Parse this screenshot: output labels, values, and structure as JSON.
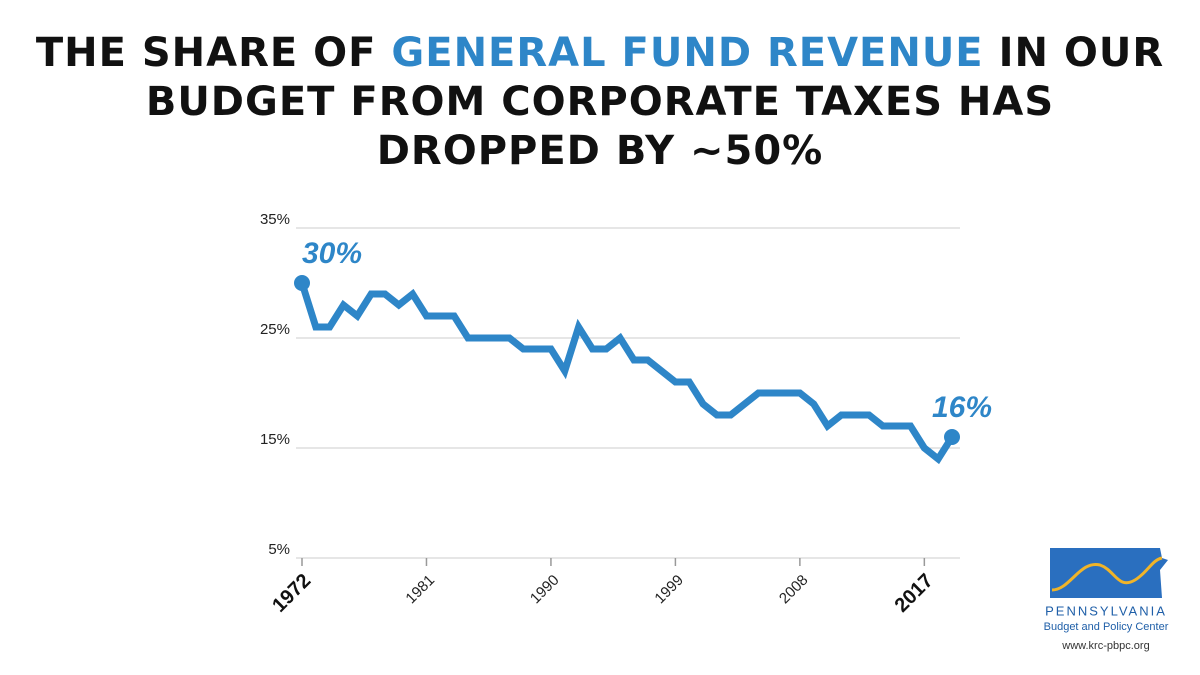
{
  "chart_data": {
    "type": "line",
    "title_segments": [
      "THE SHARE OF ",
      "GENERAL FUND REVENUE",
      " IN OUR",
      "BUDGET FROM CORPORATE TAXES HAS",
      "DROPPED BY ~50%"
    ],
    "x": [
      1972,
      1973,
      1974,
      1975,
      1976,
      1977,
      1978,
      1979,
      1980,
      1981,
      1982,
      1983,
      1984,
      1985,
      1986,
      1987,
      1988,
      1989,
      1990,
      1991,
      1992,
      1993,
      1994,
      1995,
      1996,
      1997,
      1998,
      1999,
      2000,
      2001,
      2002,
      2003,
      2004,
      2005,
      2006,
      2007,
      2008,
      2009,
      2010,
      2011,
      2012,
      2013,
      2014,
      2015,
      2016,
      2017,
      2018,
      2019
    ],
    "series": [
      {
        "name": "Corporate tax share",
        "color": "#2e86c8",
        "values": [
          30,
          26,
          26,
          28,
          27,
          29,
          29,
          28,
          29,
          27,
          27,
          27,
          25,
          25,
          25,
          25,
          24,
          24,
          24,
          22,
          26,
          24,
          24,
          25,
          23,
          23,
          22,
          21,
          21,
          19,
          18,
          18,
          19,
          20,
          20,
          20,
          20,
          19,
          17,
          18,
          18,
          18,
          17,
          17,
          17,
          15,
          14,
          16
        ],
        "value_labels": [
          "30%",
          null,
          null,
          null,
          null,
          null,
          null,
          null,
          null,
          null,
          null,
          null,
          null,
          null,
          null,
          null,
          null,
          null,
          null,
          null,
          null,
          null,
          null,
          null,
          null,
          null,
          null,
          null,
          null,
          null,
          null,
          null,
          null,
          null,
          null,
          null,
          null,
          null,
          null,
          null,
          null,
          null,
          null,
          null,
          null,
          null,
          null,
          "16%"
        ]
      }
    ],
    "xlim": [
      1972,
      2019
    ],
    "xticks": [
      1972,
      1981,
      1990,
      1999,
      2008,
      2017
    ],
    "ylim": [
      5,
      35
    ],
    "yticks": [
      {
        "value": 5,
        "label": "5%"
      },
      {
        "value": 15,
        "label": "15%"
      },
      {
        "value": 25,
        "label": "25%"
      },
      {
        "value": 35,
        "label": "35%"
      }
    ],
    "grid": true,
    "logo": {
      "name": "PENNSYLVANIA",
      "subtitle": "Budget and Policy Center",
      "url": "www.krc-pbpc.org"
    }
  }
}
